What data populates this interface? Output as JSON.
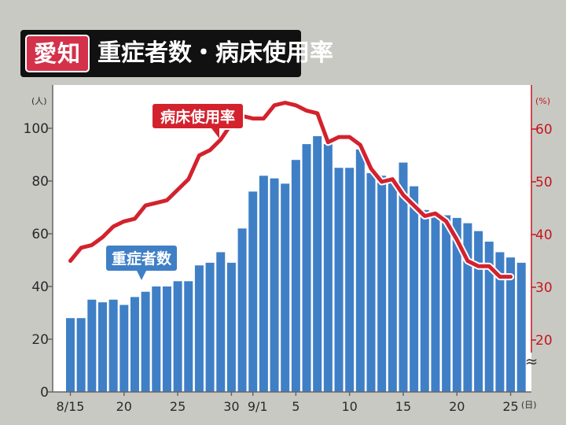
{
  "header": {
    "region": "愛知",
    "title": "重症者数・病床使用率"
  },
  "colors": {
    "bars": "#3f7fc6",
    "line": "#d3222d",
    "background": "#c9c9c4",
    "plot_background": "#ffffff"
  },
  "chart_data": {
    "type": "bar",
    "title": "重症者数・病床使用率",
    "x_tick_labels": [
      "8/15",
      "20",
      "25",
      "30",
      "9/1",
      "5",
      "10",
      "15",
      "20",
      "25"
    ],
    "x_unit": "(日)",
    "y_left": {
      "unit": "(人)",
      "ylim": [
        0,
        100
      ],
      "ticks": [
        "0",
        "20",
        "40",
        "60",
        "80",
        "100"
      ]
    },
    "y_right": {
      "unit": "(%)",
      "ylim": [
        20,
        60
      ],
      "ticks": [
        "20",
        "30",
        "40",
        "50",
        "60"
      ]
    },
    "axis_break_symbol": "≈",
    "series": [
      {
        "name": "重症者数",
        "type": "bar",
        "axis": "left",
        "values": [
          28,
          28,
          35,
          34,
          35,
          33,
          36,
          38,
          40,
          40,
          42,
          42,
          48,
          49,
          53,
          49,
          62,
          76,
          82,
          81,
          79,
          88,
          94,
          97,
          94,
          85,
          85,
          92,
          83,
          82,
          80,
          87,
          78,
          69,
          68,
          67,
          66,
          64,
          61,
          57,
          53,
          51,
          49
        ]
      },
      {
        "name": "病床使用率",
        "type": "line",
        "axis": "right",
        "values": [
          35,
          37.5,
          38,
          39.5,
          41.5,
          42.5,
          43,
          45.5,
          46,
          46.5,
          48.5,
          50.5,
          55,
          56,
          58,
          61,
          62.5,
          62,
          62,
          64.5,
          65,
          64.5,
          63.5,
          63,
          57.5,
          58.5,
          58.5,
          57,
          52.5,
          50,
          50.5,
          47.5,
          45.5,
          43.5,
          44,
          42.5,
          39,
          35,
          34,
          34,
          32,
          32
        ]
      }
    ],
    "grid": false,
    "legend": "inline labels"
  }
}
